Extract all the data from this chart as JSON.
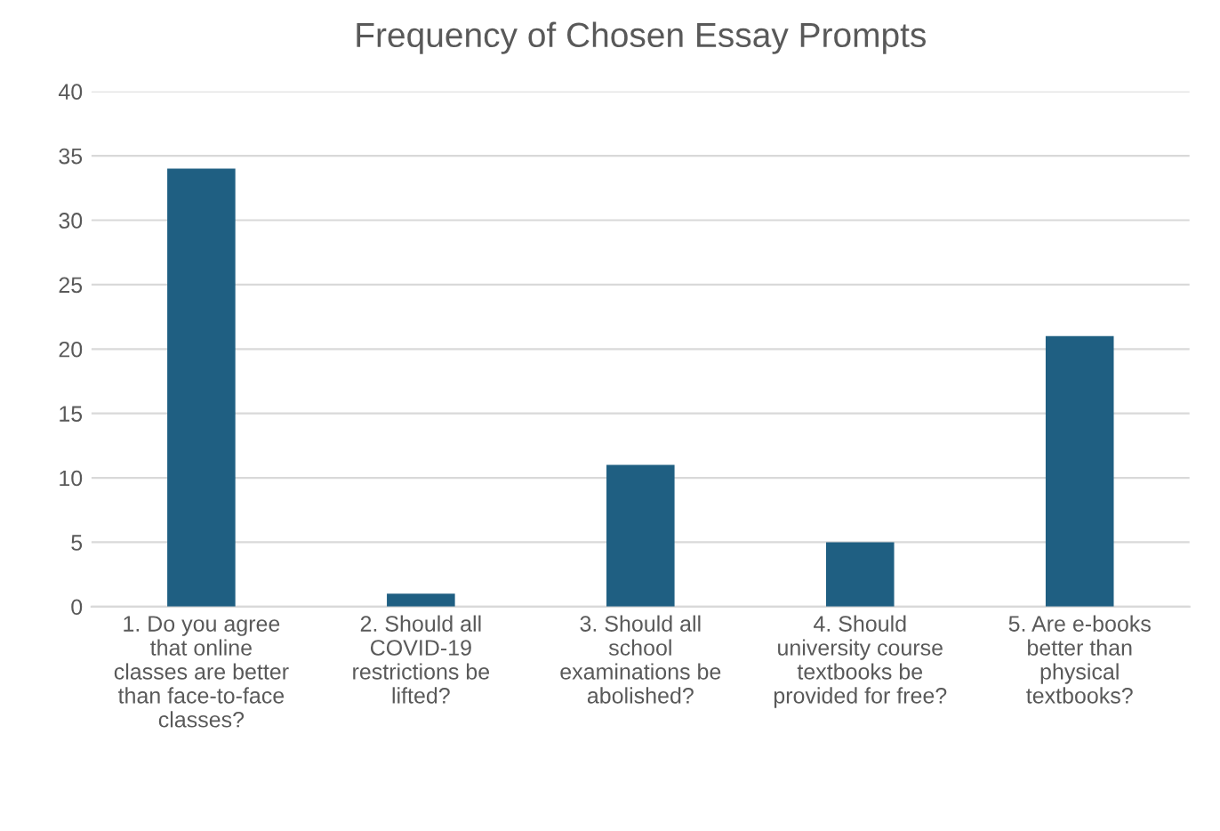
{
  "chart_data": {
    "type": "bar",
    "title": "Frequency of Chosen Essay Prompts",
    "categories": [
      "1. Do you agree\nthat online\nclasses are better\nthan face-to-face\nclasses?",
      "2. Should all\nCOVID-19\nrestrictions be\nlifted?",
      "3. Should all\nschool\nexaminations be\nabolished?",
      "4. Should\nuniversity course\ntextbooks be\nprovided for free?",
      "5. Are e-books\nbetter than\nphysical\ntextbooks?"
    ],
    "values": [
      34,
      1,
      11,
      5,
      21
    ],
    "color": "#1f5f82",
    "ylim": [
      0,
      40
    ],
    "yticks": [
      0,
      5,
      10,
      15,
      20,
      25,
      30,
      35,
      40
    ],
    "grid": "y",
    "legend": false
  }
}
